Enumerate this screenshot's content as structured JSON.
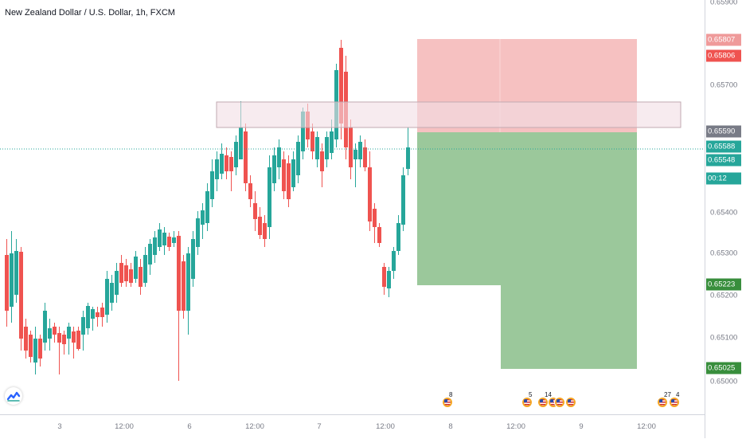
{
  "title": "New Zealand Dollar / U.S. Dollar, 1h, FXCM",
  "price_axis": {
    "ticks": [
      "0.65900",
      "0.65700",
      "0.65400",
      "0.65300",
      "0.65200",
      "0.65100",
      "0.65000"
    ],
    "labels": [
      {
        "text": "0.65807",
        "color": "#ef9a9a"
      },
      {
        "text": "0.65806",
        "color": "#ef5350"
      },
      {
        "text": "0.65590",
        "color": "#787b86"
      },
      {
        "text": "0.65588",
        "color": "#26a69a"
      },
      {
        "text": "0.65548",
        "color": "#26a69a"
      },
      {
        "text": "00:12",
        "color": "#26a69a"
      },
      {
        "text": "0.65223",
        "color": "#388e3c"
      },
      {
        "text": "0.65025",
        "color": "#388e3c"
      }
    ]
  },
  "time_axis": {
    "ticks": [
      "3",
      "12:00",
      "6",
      "12:00",
      "7",
      "12:00",
      "8",
      "12:00",
      "9",
      "12:00"
    ]
  },
  "events": [
    "8",
    "5",
    "14",
    "",
    "",
    "",
    "27",
    "4"
  ],
  "colors": {
    "up": "#26a69a",
    "down": "#ef5350",
    "stop_zone": "#f4b6b6",
    "target_zone": "#96c596",
    "resistance_zone": "#f2dde4",
    "current_price_line": "#26a69a"
  },
  "icons": {
    "logo": "tradingview-logo-icon",
    "event": "us-flag-event-icon"
  }
}
